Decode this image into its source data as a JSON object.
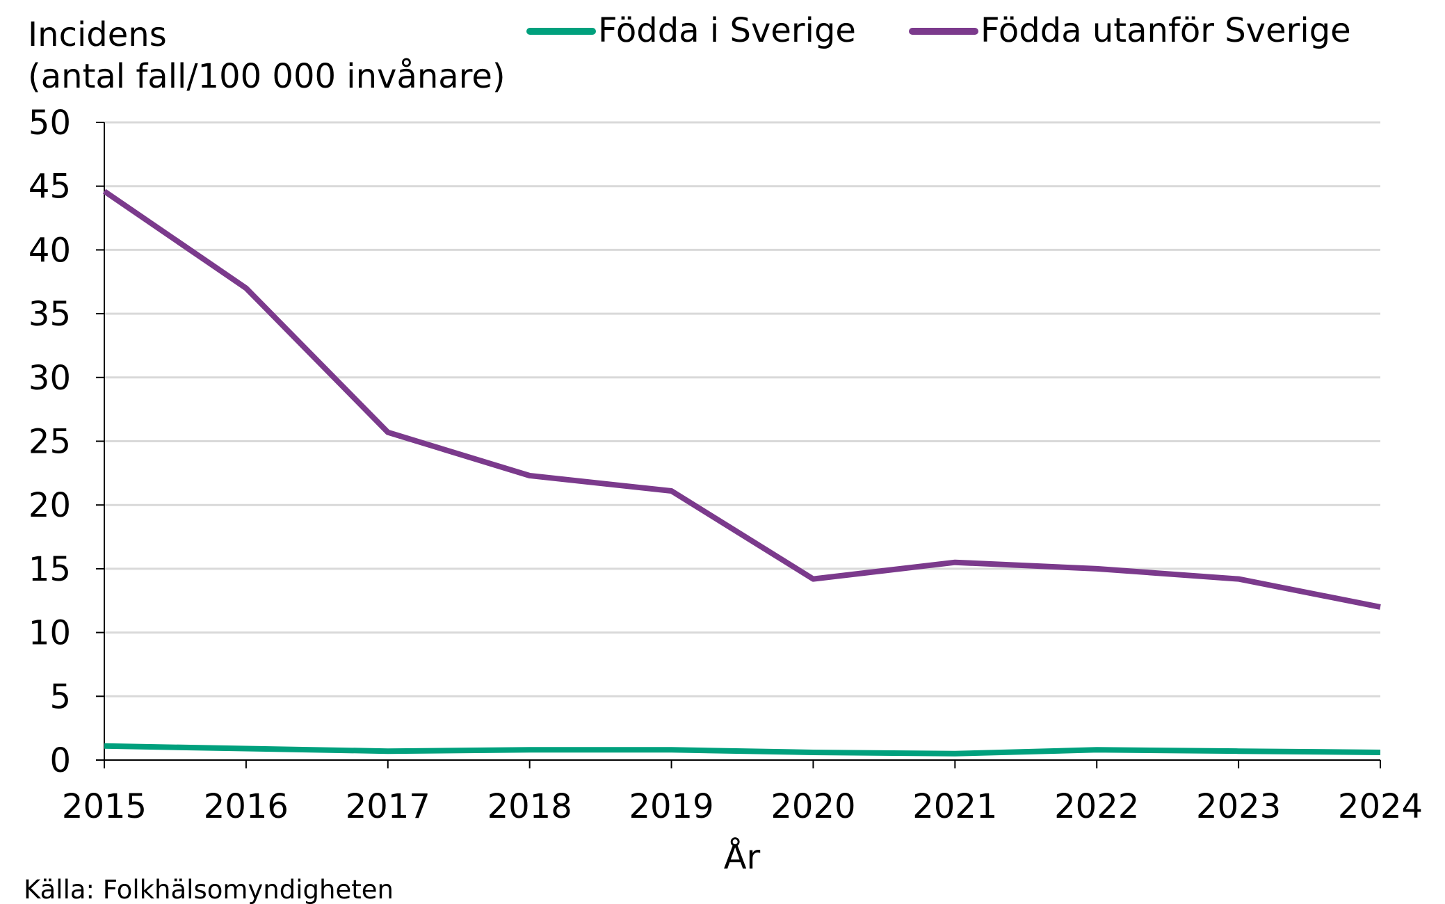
{
  "chart_data": {
    "type": "line",
    "x": [
      "2015",
      "2016",
      "2017",
      "2018",
      "2019",
      "2020",
      "2021",
      "2022",
      "2023",
      "2024"
    ],
    "series": [
      {
        "name": "Födda i Sverige",
        "color": "#00A07D",
        "values": [
          1.1,
          0.9,
          0.7,
          0.8,
          0.8,
          0.6,
          0.5,
          0.8,
          0.7,
          0.6
        ]
      },
      {
        "name": "Födda utanför Sverige",
        "color": "#7B3A8C",
        "values": [
          44.6,
          37.0,
          25.7,
          22.3,
          21.1,
          14.2,
          15.5,
          15.0,
          14.2,
          12.0
        ]
      }
    ],
    "ylabel_line1": "Incidens",
    "ylabel_line2": "(antal fall/100 000 invånare)",
    "xlabel": "År",
    "ylim": [
      0,
      50
    ],
    "yticks": [
      0,
      5,
      10,
      15,
      20,
      25,
      30,
      35,
      40,
      45,
      50
    ],
    "grid": true,
    "legend_position": "top",
    "source": "Källa: Folkhälsomyndigheten",
    "colors": {
      "grid": "#D9D9D9",
      "axis": "#000000"
    }
  }
}
